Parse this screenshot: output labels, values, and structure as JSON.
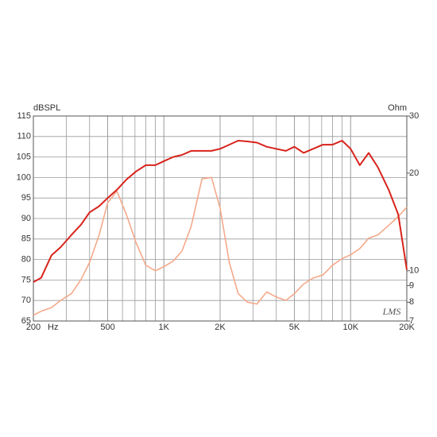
{
  "chart_data": {
    "type": "line",
    "ylabel": "dBSPL",
    "y2label": "Ohm",
    "xlabel": "Hz",
    "watermark": "LMS",
    "x_scale": "log",
    "y2_scale": "log",
    "grid": true,
    "xlim": [
      200,
      20000
    ],
    "xticks": [
      200,
      500,
      {
        "value": 1000,
        "label": "1K"
      },
      {
        "value": 2000,
        "label": "2K"
      },
      {
        "value": 5000,
        "label": "5K"
      },
      {
        "value": 10000,
        "label": "10K"
      },
      {
        "value": 20000,
        "label": "20K"
      }
    ],
    "ylim": [
      65,
      115
    ],
    "yticks": [
      65,
      70,
      75,
      80,
      85,
      90,
      95,
      100,
      105,
      110,
      115
    ],
    "y2lim": [
      7,
      30
    ],
    "y2ticks": [
      7,
      8,
      9,
      10,
      20,
      30
    ],
    "x": [
      200,
      220,
      250,
      280,
      320,
      360,
      400,
      450,
      500,
      560,
      630,
      710,
      800,
      900,
      1000,
      1120,
      1250,
      1400,
      1600,
      1800,
      2000,
      2240,
      2500,
      2800,
      3150,
      3550,
      4000,
      4500,
      5000,
      5600,
      6300,
      7100,
      8000,
      9000,
      10000,
      11200,
      12500,
      14000,
      16000,
      18000,
      20000
    ],
    "series": [
      {
        "color": "#d8231b",
        "values": [
          74.5,
          75.5,
          81,
          83,
          86,
          88.5,
          91.5,
          93,
          95,
          97,
          99.5,
          101.5,
          103,
          103,
          104,
          105,
          105.5,
          106.5,
          106.5,
          106.5,
          107,
          108,
          109,
          108.8,
          108.5,
          107.5,
          107,
          106.5,
          107.5,
          106,
          107,
          108,
          108,
          109,
          107,
          103,
          106,
          102.5,
          97,
          91,
          77.5
        ]
      },
      {
        "color": "#f4a98a",
        "axis": "y2",
        "values": [
          7.3,
          7.5,
          7.7,
          8.1,
          8.5,
          9.4,
          10.6,
          12.9,
          16.2,
          17.6,
          14.9,
          12.2,
          10.4,
          10.0,
          10.3,
          10.7,
          11.5,
          13.7,
          19.2,
          19.4,
          15.6,
          10.6,
          8.5,
          8.0,
          7.9,
          8.6,
          8.3,
          8.1,
          8.5,
          9.1,
          9.5,
          9.7,
          10.4,
          10.9,
          11.2,
          11.7,
          12.6,
          12.9,
          13.8,
          14.7,
          15.7
        ]
      }
    ]
  }
}
